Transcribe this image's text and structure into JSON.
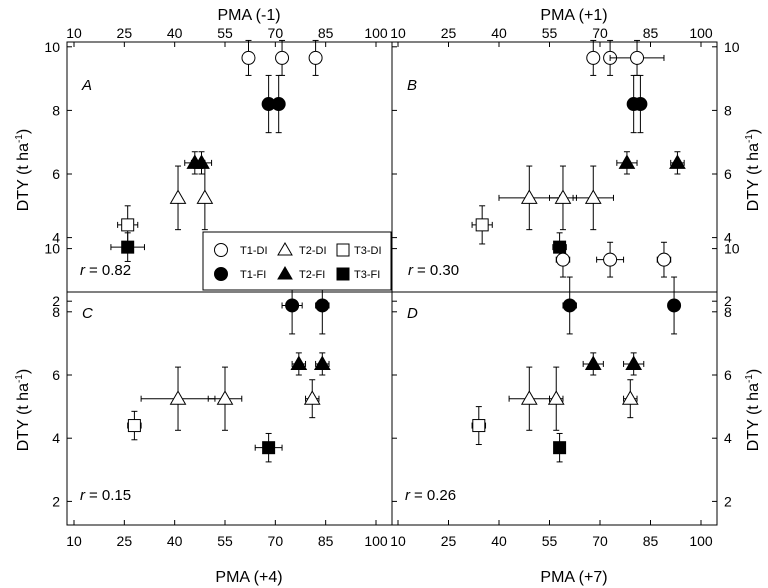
{
  "chart_data": {
    "type": "scatter",
    "legend": {
      "placement": "center",
      "entries": [
        {
          "label": "T1-DI",
          "marker": "circle",
          "filled": false
        },
        {
          "label": "T2-DI",
          "marker": "triangle",
          "filled": false
        },
        {
          "label": "T3-DI",
          "marker": "square",
          "filled": false
        },
        {
          "label": "T1-FI",
          "marker": "circle",
          "filled": true
        },
        {
          "label": "T2-FI",
          "marker": "triangle",
          "filled": true
        },
        {
          "label": "T3-FI",
          "marker": "square",
          "filled": true
        }
      ]
    },
    "ylabel": "DTY (t ha-1)",
    "ylabel_main": "DTY (t ha",
    "ylabel_sup": "-1",
    "ylabel_close": ")",
    "ylim": [
      1,
      11
    ],
    "yticks": [
      "2",
      "4",
      "6",
      "8",
      "10"
    ],
    "xlim": [
      10,
      100
    ],
    "xticks": [
      "10",
      "25",
      "40",
      "55",
      "70",
      "85",
      "100"
    ],
    "grid": false,
    "panels": [
      {
        "letter": "A",
        "xlabel": "PMA (-1)",
        "r_label": "r",
        "r_value": "= 0.82",
        "series": [
          {
            "name": "T1-DI",
            "marker": "circle",
            "filled": false,
            "points": [
              {
                "x": 62,
                "y": 9.65,
                "xerr": 0,
                "yerr": 0.55
              },
              {
                "x": 72,
                "y": 9.65,
                "xerr": 0,
                "yerr": 0.55
              },
              {
                "x": 82,
                "y": 9.65,
                "xerr": 0,
                "yerr": 0.55
              }
            ]
          },
          {
            "name": "T1-FI",
            "marker": "circle",
            "filled": true,
            "points": [
              {
                "x": 68,
                "y": 8.2,
                "xerr": 0,
                "yerr": 0.9
              },
              {
                "x": 71,
                "y": 8.2,
                "xerr": 0,
                "yerr": 0.9
              }
            ]
          },
          {
            "name": "T2-DI",
            "marker": "triangle",
            "filled": false,
            "points": [
              {
                "x": 41,
                "y": 5.25,
                "xerr": 0,
                "yerr": 1.0
              },
              {
                "x": 49,
                "y": 5.25,
                "xerr": 0,
                "yerr": 1.0
              }
            ]
          },
          {
            "name": "T2-FI",
            "marker": "triangle",
            "filled": true,
            "points": [
              {
                "x": 46,
                "y": 6.35,
                "xerr": 3,
                "yerr": 0.35
              },
              {
                "x": 48,
                "y": 6.35,
                "xerr": 3,
                "yerr": 0.35
              }
            ]
          },
          {
            "name": "T3-DI",
            "marker": "square",
            "filled": false,
            "points": [
              {
                "x": 26,
                "y": 4.4,
                "xerr": 3,
                "yerr": 0.6
              }
            ]
          },
          {
            "name": "T3-FI",
            "marker": "square",
            "filled": true,
            "points": [
              {
                "x": 26,
                "y": 3.7,
                "xerr": 5,
                "yerr": 0.45
              }
            ]
          }
        ]
      },
      {
        "letter": "B",
        "xlabel": "PMA (+1)",
        "r_label": "r",
        "r_value": "= 0.30",
        "series": [
          {
            "name": "T1-DI",
            "marker": "circle",
            "filled": false,
            "points": [
              {
                "x": 68,
                "y": 9.65,
                "xerr": 0,
                "yerr": 0.55
              },
              {
                "x": 73,
                "y": 9.65,
                "xerr": 0,
                "yerr": 0.55
              },
              {
                "x": 81,
                "y": 9.65,
                "xerr": 8,
                "yerr": 0.55
              }
            ]
          },
          {
            "name": "T1-FI",
            "marker": "circle",
            "filled": true,
            "points": [
              {
                "x": 80,
                "y": 8.2,
                "xerr": 0,
                "yerr": 0.9
              },
              {
                "x": 82,
                "y": 8.2,
                "xerr": 0,
                "yerr": 0.9
              }
            ]
          },
          {
            "name": "T2-DI",
            "marker": "triangle",
            "filled": false,
            "points": [
              {
                "x": 49,
                "y": 5.25,
                "xerr": 9,
                "yerr": 1.0
              },
              {
                "x": 59,
                "y": 5.25,
                "xerr": 4,
                "yerr": 1.0
              },
              {
                "x": 68,
                "y": 5.25,
                "xerr": 6,
                "yerr": 1.0
              }
            ]
          },
          {
            "name": "T2-FI",
            "marker": "triangle",
            "filled": true,
            "points": [
              {
                "x": 78,
                "y": 6.35,
                "xerr": 3,
                "yerr": 0.35
              },
              {
                "x": 93,
                "y": 6.35,
                "xerr": 2,
                "yerr": 0.35
              }
            ]
          },
          {
            "name": "T3-DI",
            "marker": "square",
            "filled": false,
            "points": [
              {
                "x": 35,
                "y": 4.4,
                "xerr": 3,
                "yerr": 0.6
              }
            ]
          },
          {
            "name": "T3-FI",
            "marker": "square",
            "filled": true,
            "points": [
              {
                "x": 58,
                "y": 3.7,
                "xerr": 2,
                "yerr": 0.45
              }
            ]
          }
        ]
      },
      {
        "letter": "C",
        "xlabel": "PMA (+4)",
        "r_label": "r",
        "r_value": "= 0.15",
        "series": [
          {
            "name": "T1-DI",
            "marker": "circle",
            "filled": false,
            "points": [
              {
                "x": 55,
                "y": 9.65,
                "xerr": 3,
                "yerr": 0.55
              },
              {
                "x": 70,
                "y": 9.65,
                "xerr": 4,
                "yerr": 0.55
              },
              {
                "x": 82,
                "y": 9.65,
                "xerr": 3,
                "yerr": 0.55
              }
            ]
          },
          {
            "name": "T1-FI",
            "marker": "circle",
            "filled": true,
            "points": [
              {
                "x": 75,
                "y": 8.2,
                "xerr": 3,
                "yerr": 0.9
              },
              {
                "x": 84,
                "y": 8.2,
                "xerr": 2,
                "yerr": 0.9
              }
            ]
          },
          {
            "name": "T2-DI",
            "marker": "triangle",
            "filled": false,
            "points": [
              {
                "x": 41,
                "y": 5.25,
                "xerr": 11,
                "yerr": 1.0
              },
              {
                "x": 55,
                "y": 5.25,
                "xerr": 5,
                "yerr": 1.0
              },
              {
                "x": 81,
                "y": 5.25,
                "xerr": 2,
                "yerr": 0.6
              }
            ]
          },
          {
            "name": "T2-FI",
            "marker": "triangle",
            "filled": true,
            "points": [
              {
                "x": 77,
                "y": 6.35,
                "xerr": 2,
                "yerr": 0.35
              },
              {
                "x": 84,
                "y": 6.35,
                "xerr": 2,
                "yerr": 0.35
              }
            ]
          },
          {
            "name": "T3-DI",
            "marker": "square",
            "filled": false,
            "points": [
              {
                "x": 28,
                "y": 4.4,
                "xerr": 2,
                "yerr": 0.45
              }
            ]
          },
          {
            "name": "T3-FI",
            "marker": "square",
            "filled": true,
            "points": [
              {
                "x": 68,
                "y": 3.7,
                "xerr": 4,
                "yerr": 0.45
              }
            ]
          }
        ]
      },
      {
        "letter": "D",
        "xlabel": "PMA (+7)",
        "r_label": "r",
        "r_value": "= 0.26",
        "series": [
          {
            "name": "T1-DI",
            "marker": "circle",
            "filled": false,
            "points": [
              {
                "x": 59,
                "y": 9.65,
                "xerr": 2,
                "yerr": 0.55
              },
              {
                "x": 73,
                "y": 9.65,
                "xerr": 4,
                "yerr": 0.55
              },
              {
                "x": 89,
                "y": 9.65,
                "xerr": 2,
                "yerr": 0.55
              }
            ]
          },
          {
            "name": "T1-FI",
            "marker": "circle",
            "filled": true,
            "points": [
              {
                "x": 61,
                "y": 8.2,
                "xerr": 2,
                "yerr": 0.9
              },
              {
                "x": 92,
                "y": 8.2,
                "xerr": 0,
                "yerr": 0.9
              }
            ]
          },
          {
            "name": "T2-DI",
            "marker": "triangle",
            "filled": false,
            "points": [
              {
                "x": 49,
                "y": 5.25,
                "xerr": 6,
                "yerr": 1.0
              },
              {
                "x": 57,
                "y": 5.25,
                "xerr": 2,
                "yerr": 1.0
              },
              {
                "x": 79,
                "y": 5.25,
                "xerr": 2,
                "yerr": 0.6
              }
            ]
          },
          {
            "name": "T2-FI",
            "marker": "triangle",
            "filled": true,
            "points": [
              {
                "x": 68,
                "y": 6.35,
                "xerr": 3,
                "yerr": 0.35
              },
              {
                "x": 80,
                "y": 6.35,
                "xerr": 3,
                "yerr": 0.35
              }
            ]
          },
          {
            "name": "T3-DI",
            "marker": "square",
            "filled": false,
            "points": [
              {
                "x": 34,
                "y": 4.4,
                "xerr": 2,
                "yerr": 0.6
              }
            ]
          },
          {
            "name": "T3-FI",
            "marker": "square",
            "filled": true,
            "points": [
              {
                "x": 58,
                "y": 3.7,
                "xerr": 1,
                "yerr": 0.45
              }
            ]
          }
        ]
      }
    ]
  }
}
